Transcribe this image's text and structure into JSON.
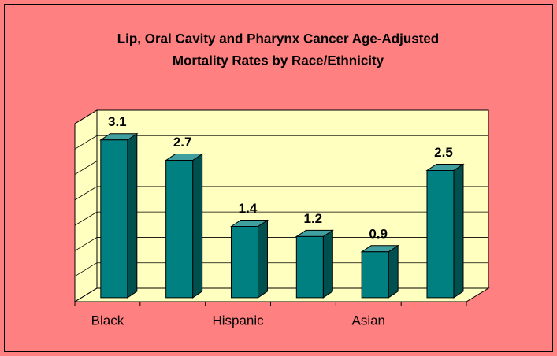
{
  "chart_data": {
    "type": "bar3d",
    "title": [
      "Lip, Oral Cavity and Pharynx Cancer Age-Adjusted",
      "Mortality Rates by Race/Ethnicity"
    ],
    "categories": [
      "Black",
      null,
      "Hispanic",
      null,
      "Asian",
      null
    ],
    "values": [
      3.1,
      2.7,
      1.4,
      1.2,
      0.9,
      2.5
    ],
    "color": "#008080",
    "ylim": [
      0,
      3.5
    ],
    "yticks": [
      0,
      0.5,
      1,
      1.5,
      2,
      2.5,
      3,
      3.5
    ],
    "grid": true
  }
}
